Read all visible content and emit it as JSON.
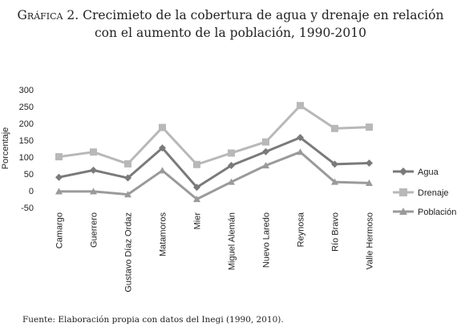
{
  "title_line1_prefix": "Gráfica 2.",
  "title_line1_rest": " Crecimieto de la cobertura de agua y drenaje en relación",
  "title_line2": "con el aumento de la población, 1990-2010",
  "source": "Fuente: Elaboración propia con datos del Inegi (1990, 2010).",
  "chart_data": {
    "type": "line",
    "ylabel": "Porcentaje",
    "ylim": [
      -50,
      300
    ],
    "yticks": [
      300,
      250,
      200,
      150,
      100,
      50,
      0,
      -50
    ],
    "grid": false,
    "legend": "right",
    "categories": [
      "Camargo",
      "Guerrero",
      "Gustavo Díaz Ordaz",
      "Matamoros",
      "Mier",
      "Miguel Alemán",
      "Nuevo Laredo",
      "Reynosa",
      "Río Bravo",
      "Valle Hermoso"
    ],
    "series": [
      {
        "name": "Agua",
        "color": "#7a7a7a",
        "marker": "diamond",
        "values": [
          40,
          61,
          38,
          127,
          10,
          75,
          116,
          158,
          79,
          82
        ]
      },
      {
        "name": "Drenaje",
        "color": "#b8b8b8",
        "marker": "square",
        "values": [
          101,
          115,
          80,
          188,
          78,
          112,
          145,
          253,
          185,
          189
        ]
      },
      {
        "name": "Población",
        "color": "#9a9a9a",
        "marker": "triangle",
        "values": [
          -2,
          -2,
          -11,
          60,
          -25,
          26,
          75,
          115,
          26,
          23
        ]
      }
    ]
  }
}
